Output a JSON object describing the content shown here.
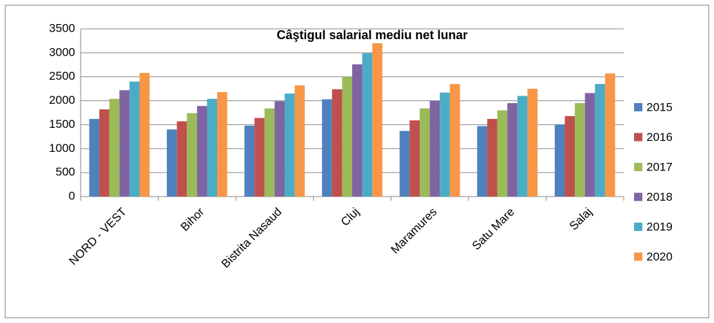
{
  "chart_data": {
    "type": "bar",
    "title": "Câştigul salarial mediu net lunar",
    "categories": [
      "NORD - VEST",
      "Bihor",
      "Bistrita Nasaud",
      "Cluj",
      "Maramures",
      "Satu Mare",
      "Salaj"
    ],
    "series": [
      {
        "name": "2015",
        "color": "#4f81bd",
        "values": [
          1620,
          1400,
          1480,
          2030,
          1370,
          1470,
          1500
        ]
      },
      {
        "name": "2016",
        "color": "#c0504d",
        "values": [
          1820,
          1570,
          1640,
          2240,
          1590,
          1620,
          1680
        ]
      },
      {
        "name": "2017",
        "color": "#9bbb59",
        "values": [
          2040,
          1740,
          1840,
          2500,
          1840,
          1800,
          1950
        ]
      },
      {
        "name": "2018",
        "color": "#8064a2",
        "values": [
          2220,
          1890,
          1990,
          2760,
          2000,
          1950,
          2160
        ]
      },
      {
        "name": "2019",
        "color": "#4bacc6",
        "values": [
          2400,
          2040,
          2150,
          2990,
          2170,
          2100,
          2350
        ]
      },
      {
        "name": "2020",
        "color": "#f79646",
        "values": [
          2580,
          2180,
          2320,
          3200,
          2350,
          2250,
          2570
        ]
      }
    ],
    "ylim": [
      0,
      3500
    ],
    "yticks": [
      0,
      500,
      1000,
      1500,
      2000,
      2500,
      3000,
      3500
    ],
    "grid": true,
    "legend": "right"
  }
}
